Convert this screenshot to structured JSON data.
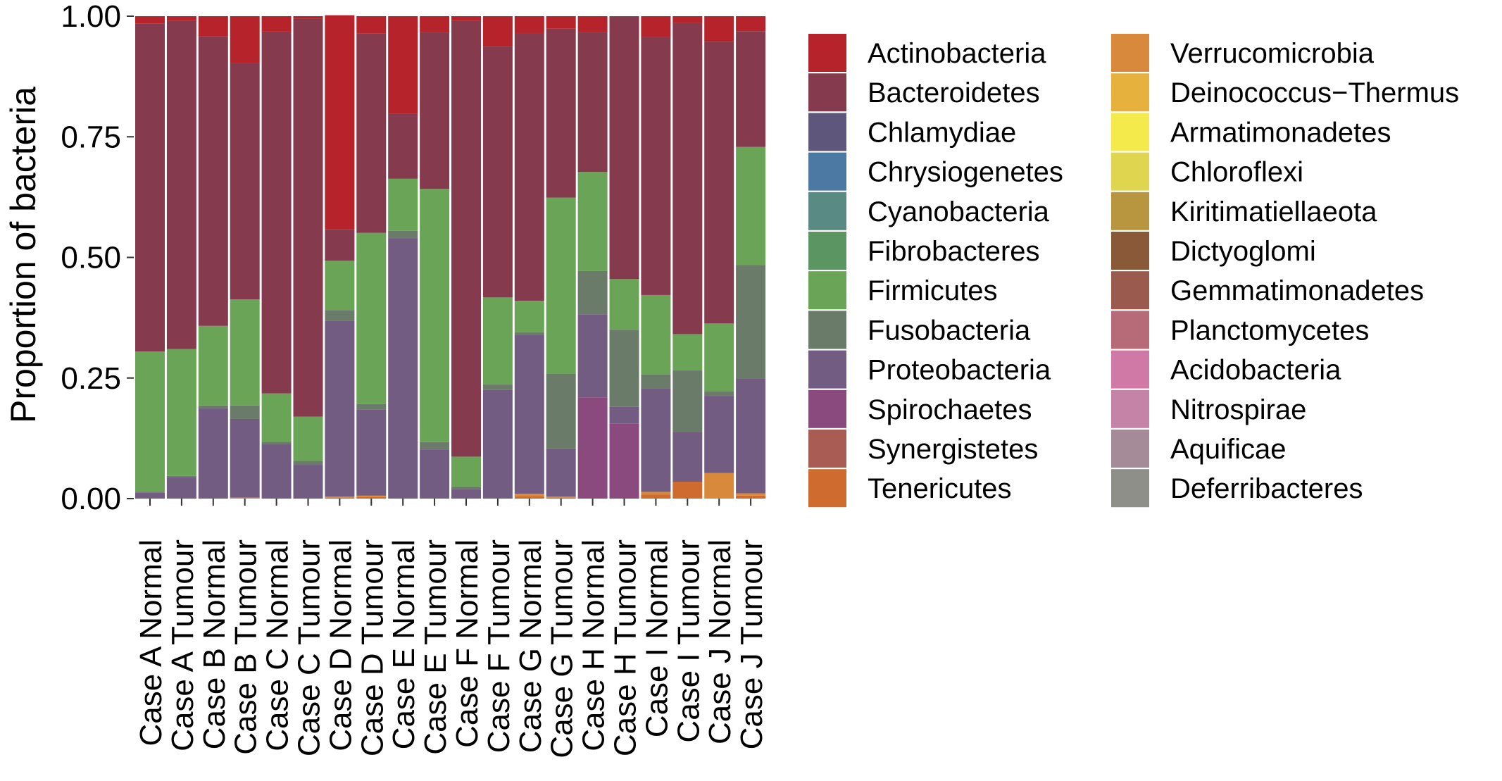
{
  "chart_data": {
    "type": "bar",
    "stacked": true,
    "ylabel": "Proportion of bacteria",
    "xlabel": "",
    "ylim": [
      0,
      1
    ],
    "yticks": [
      "0.00",
      "0.25",
      "0.50",
      "0.75",
      "1.00"
    ],
    "categories": [
      "Case A Normal",
      "Case A Tumour",
      "Case B Normal",
      "Case B Tumour",
      "Case C Normal",
      "Case C Tumour",
      "Case D Normal",
      "Case D Tumour",
      "Case E Normal",
      "Case E Tumour",
      "Case F Normal",
      "Case F Tumour",
      "Case G Normal",
      "Case G Tumour",
      "Case H Normal",
      "Case H Tumour",
      "Case I Normal",
      "Case I Tumour",
      "Case J Normal",
      "Case J Tumour"
    ],
    "legend_order": [
      "Actinobacteria",
      "Bacteroidetes",
      "Chlamydiae",
      "Chrysiogenetes",
      "Cyanobacteria",
      "Fibrobacteres",
      "Firmicutes",
      "Fusobacteria",
      "Proteobacteria",
      "Spirochaetes",
      "Synergistetes",
      "Tenericutes",
      "Verrucomicrobia",
      "Deinococcus−Thermus",
      "Armatimonadetes",
      "Chloroflexi",
      "Kiritimatiellaeota",
      "Dictyoglomi",
      "Gemmatimonadetes",
      "Planctomycetes",
      "Acidobacteria",
      "Nitrospirae",
      "Aquificae",
      "Deferribacteres"
    ],
    "colors": {
      "Actinobacteria": "#b7232b",
      "Bacteroidetes": "#853a4d",
      "Chlamydiae": "#5f567c",
      "Chrysiogenetes": "#4c78a4",
      "Cyanobacteria": "#5a8a84",
      "Fibrobacteres": "#5b9562",
      "Firmicutes": "#6aa457",
      "Fusobacteria": "#6b7b6a",
      "Proteobacteria": "#735c82",
      "Spirochaetes": "#8b4a7d",
      "Synergistetes": "#a85c54",
      "Tenericutes": "#cf6b2e",
      "Verrucomicrobia": "#d9893b",
      "Deinococcus−Thermus": "#e7b13d",
      "Armatimonadetes": "#f4ea4b",
      "Chloroflexi": "#dfd54f",
      "Kiritimatiellaeota": "#b8953f",
      "Dictyoglomi": "#8a5a38",
      "Gemmatimonadetes": "#9b5a4e",
      "Planctomycetes": "#b76a78",
      "Acidobacteria": "#d078a6",
      "Nitrospirae": "#c583a8",
      "Aquificae": "#a58a98",
      "Deferribacteres": "#8f8f8a"
    },
    "series": [
      {
        "name": "Tenericutes",
        "values": [
          0,
          0,
          0,
          0,
          0,
          0,
          0.002,
          0.003,
          0,
          0,
          0,
          0,
          0.005,
          0.002,
          0,
          0,
          0.008,
          0.035,
          0,
          0.006
        ]
      },
      {
        "name": "Verrucomicrobia",
        "values": [
          0,
          0,
          0,
          0.002,
          0,
          0,
          0.002,
          0.003,
          0,
          0,
          0,
          0,
          0.005,
          0.002,
          0,
          0,
          0.006,
          0,
          0.053,
          0.005
        ]
      },
      {
        "name": "Spirochaetes",
        "values": [
          0,
          0,
          0,
          0,
          0,
          0,
          0,
          0,
          0,
          0,
          0,
          0,
          0,
          0,
          0.21,
          0.155,
          0,
          0,
          0,
          0
        ]
      },
      {
        "name": "Proteobacteria",
        "values": [
          0.012,
          0.045,
          0.188,
          0.163,
          0.113,
          0.07,
          0.365,
          0.178,
          0.54,
          0.102,
          0.02,
          0.225,
          0.33,
          0.1,
          0.172,
          0.035,
          0.215,
          0.103,
          0.16,
          0.238
        ]
      },
      {
        "name": "Fusobacteria",
        "values": [
          0.003,
          0.002,
          0.005,
          0.028,
          0.005,
          0.008,
          0.022,
          0.012,
          0.015,
          0.015,
          0.005,
          0.012,
          0.005,
          0.155,
          0.09,
          0.16,
          0.028,
          0.128,
          0.01,
          0.235
        ]
      },
      {
        "name": "Firmicutes",
        "values": [
          0.29,
          0.263,
          0.165,
          0.22,
          0.1,
          0.092,
          0.102,
          0.355,
          0.108,
          0.525,
          0.062,
          0.18,
          0.065,
          0.365,
          0.205,
          0.105,
          0.165,
          0.075,
          0.14,
          0.245
        ]
      },
      {
        "name": "Bacteroidetes",
        "values": [
          0.68,
          0.68,
          0.6,
          0.49,
          0.75,
          0.825,
          0.065,
          0.413,
          0.135,
          0.325,
          0.903,
          0.52,
          0.555,
          0.35,
          0.29,
          0.545,
          0.535,
          0.645,
          0.585,
          0.24
        ]
      },
      {
        "name": "Actinobacteria",
        "values": [
          0.015,
          0.01,
          0.042,
          0.097,
          0.032,
          0.005,
          0.444,
          0.036,
          0.202,
          0.033,
          0.01,
          0.063,
          0.035,
          0.026,
          0.033,
          0,
          0.043,
          0.014,
          0.052,
          0.031
        ]
      }
    ]
  }
}
